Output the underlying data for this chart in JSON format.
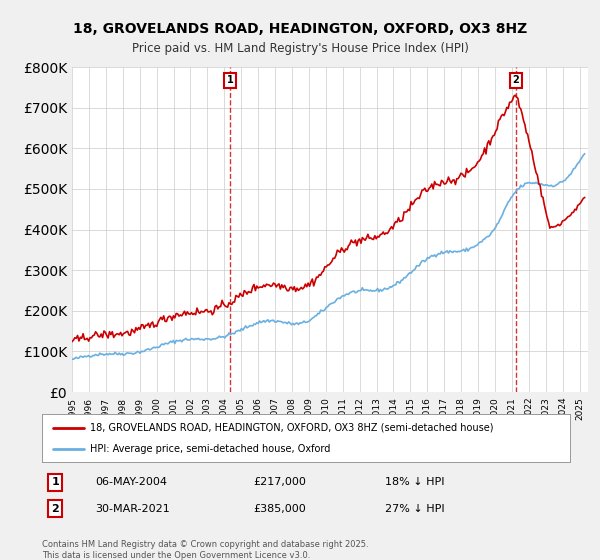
{
  "title_line1": "18, GROVELANDS ROAD, HEADINGTON, OXFORD, OX3 8HZ",
  "title_line2": "Price paid vs. HM Land Registry's House Price Index (HPI)",
  "hpi_color": "#6ab0e0",
  "price_color": "#cc0000",
  "vline_color": "#cc0000",
  "ylim": [
    0,
    800000
  ],
  "xlim_start": 1995.0,
  "xlim_end": 2025.5,
  "sale1_x": 2004.35,
  "sale1_label": "1",
  "sale1_date": "06-MAY-2004",
  "sale1_price": "£217,000",
  "sale1_hpi": "18% ↓ HPI",
  "sale2_x": 2021.25,
  "sale2_label": "2",
  "sale2_date": "30-MAR-2021",
  "sale2_price": "£385,000",
  "sale2_hpi": "27% ↓ HPI",
  "legend_line1": "18, GROVELANDS ROAD, HEADINGTON, OXFORD, OX3 8HZ (semi-detached house)",
  "legend_line2": "HPI: Average price, semi-detached house, Oxford",
  "footer": "Contains HM Land Registry data © Crown copyright and database right 2025.\nThis data is licensed under the Open Government Licence v3.0.",
  "background_color": "#f0f0f0",
  "plot_bg_color": "#ffffff"
}
